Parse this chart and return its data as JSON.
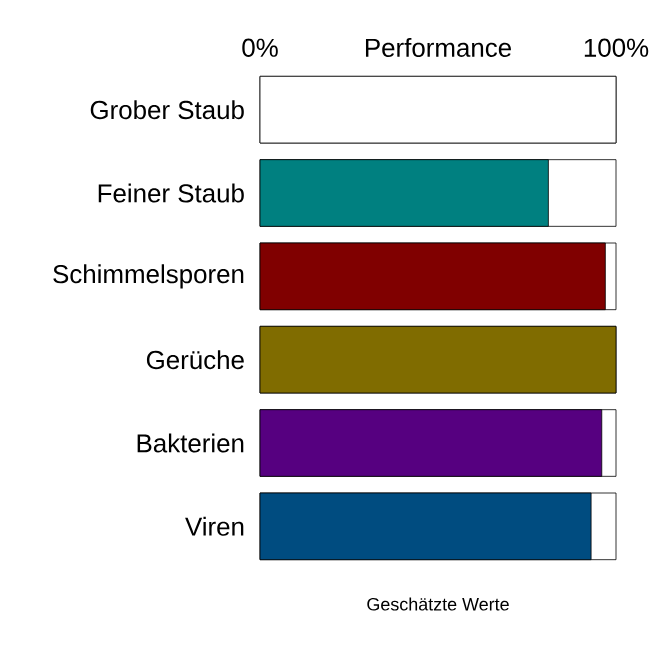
{
  "chart_data": {
    "type": "bar",
    "orientation": "horizontal",
    "xlabel": "Performance",
    "categories": [
      "Grober Staub",
      "Feiner Staub",
      "Schimmelsporen",
      "Gerüche",
      "Bakterien",
      "Viren"
    ],
    "values": [
      100,
      81,
      97,
      100,
      96,
      93
    ],
    "colors": [
      "#ffffff",
      "#008080",
      "#800000",
      "#806c00",
      "#560080",
      "#004c80"
    ],
    "xlim": [
      0,
      100
    ],
    "xticks": [
      {
        "value": 0,
        "label": "0%"
      },
      {
        "value": 100,
        "label": "100%"
      }
    ],
    "annotations": [
      "Geschätzte Werte"
    ]
  }
}
